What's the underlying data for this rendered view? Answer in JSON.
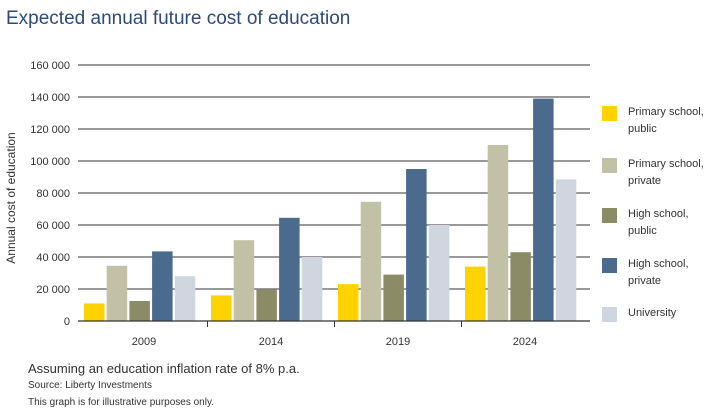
{
  "colors": {
    "title": "#2e4a7a",
    "series": [
      "#ffd200",
      "#c2c1a6",
      "#8b8c66",
      "#4a6a8e",
      "#cfd6e0"
    ],
    "gridline": "#333333"
  },
  "chart_data": {
    "type": "bar",
    "title": "Expected annual future cost of education",
    "xlabel": "",
    "ylabel": "Annual cost of education",
    "ylim": [
      0,
      160000
    ],
    "yticks": [
      0,
      20000,
      40000,
      60000,
      80000,
      100000,
      120000,
      140000,
      160000
    ],
    "ytick_labels": [
      "0",
      "20 000",
      "40 000",
      "60 000",
      "80 000",
      "100 000",
      "120 000",
      "140 000",
      "160 000"
    ],
    "grid": true,
    "legend_position": "right",
    "categories": [
      "2009",
      "2014",
      "2019",
      "2024"
    ],
    "series": [
      {
        "name": "Primary school, public",
        "values": [
          11000,
          16000,
          23000,
          34000
        ]
      },
      {
        "name": "Primary school, private",
        "values": [
          34500,
          50500,
          74500,
          110000
        ]
      },
      {
        "name": "High school, public",
        "values": [
          12500,
          19500,
          29000,
          43000
        ]
      },
      {
        "name": "High school, private",
        "values": [
          43500,
          64500,
          95000,
          139000
        ]
      },
      {
        "name": "University",
        "values": [
          28000,
          40000,
          60000,
          88500
        ]
      }
    ]
  },
  "notes": {
    "main": "Assuming an education inflation rate of 8% p.a.",
    "source": "Source: Liberty Investments",
    "disclaimer": "This graph is for illustrative purposes only."
  },
  "legend": {
    "items": [
      {
        "line1": "Primary school,",
        "line2": "public"
      },
      {
        "line1": "Primary school,",
        "line2": "private"
      },
      {
        "line1": "High school,",
        "line2": "public"
      },
      {
        "line1": "High school,",
        "line2": "private"
      },
      {
        "line1": "University",
        "line2": ""
      }
    ]
  }
}
